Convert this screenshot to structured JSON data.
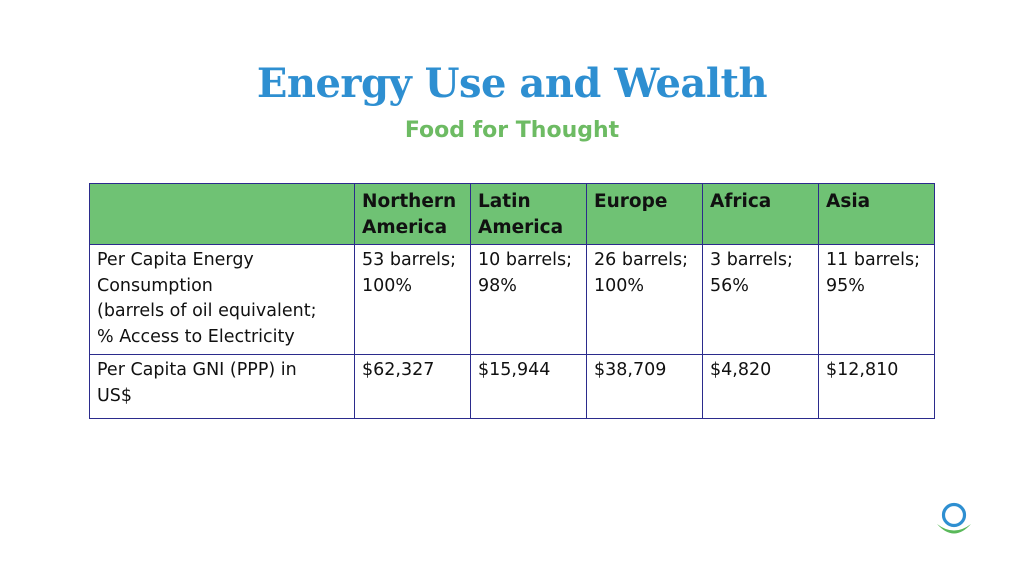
{
  "slide": {
    "title": "Energy Use and Wealth",
    "subtitle": "Food for Thought"
  },
  "table": {
    "headers": [
      "",
      "Northern\nAmerica",
      "Latin\nAmerica",
      "Europe",
      "Africa",
      "Asia"
    ],
    "rows": [
      {
        "label": "Per Capita Energy\nConsumption\n(barrels of oil equivalent;\n% Access to Electricity",
        "cells": [
          "53 barrels;\n100%",
          "10 barrels;\n98%",
          "26 barrels;\n100%",
          "3 barrels;\n56%",
          "11 barrels;\n95%"
        ]
      },
      {
        "label": "Per Capita GNI (PPP) in\nUS$",
        "cells": [
          "$62,327",
          "$15,944",
          "$38,709",
          "$4,820",
          "$12,810"
        ]
      }
    ]
  },
  "colors": {
    "title": "#2e8fd1",
    "subtitle": "#6dbb63",
    "header_fill": "#6fc274",
    "border": "#2b2b8c"
  },
  "logo": {
    "icon": "ring-and-swoosh-logo"
  }
}
